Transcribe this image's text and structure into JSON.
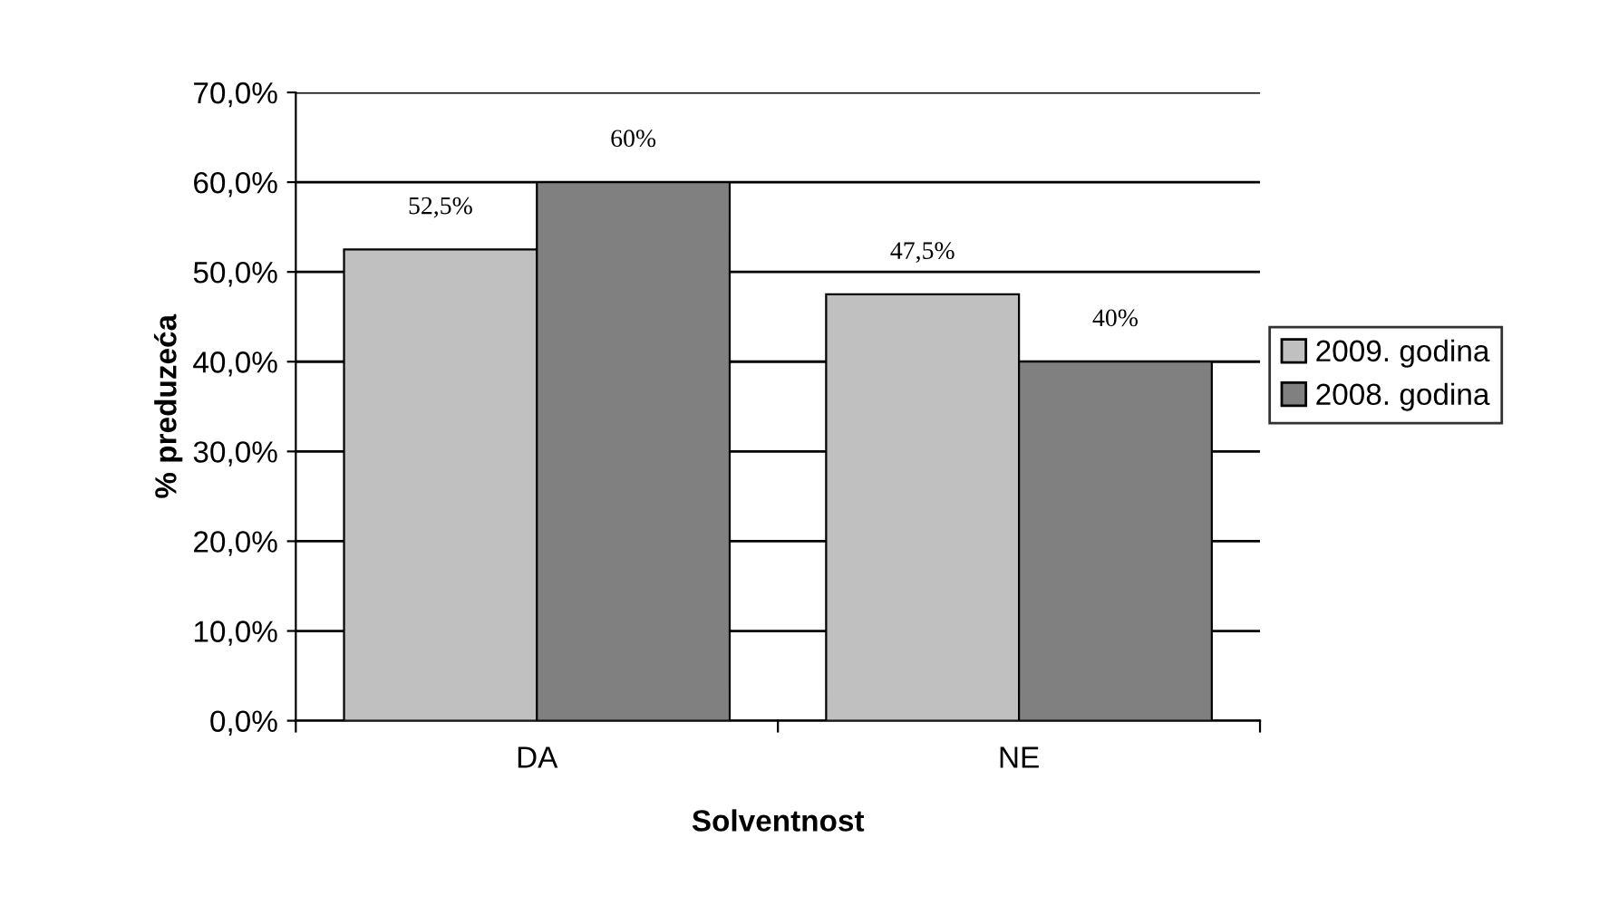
{
  "chart_data": {
    "type": "bar",
    "xlabel": "Solventnost",
    "ylabel": "% preduzeća",
    "categories": [
      "DA",
      "NE"
    ],
    "series": [
      {
        "name": "2009. godina",
        "color": "#c0c0c0",
        "values": [
          52.5,
          47.5
        ],
        "value_labels": [
          "52,5%",
          "47,5%"
        ]
      },
      {
        "name": "2008. godina",
        "color": "#808080",
        "values": [
          60,
          40
        ],
        "value_labels": [
          "60%",
          "40%"
        ]
      }
    ],
    "ylim": [
      0,
      70
    ],
    "yticks": [
      {
        "value": 0,
        "label": "0,0%"
      },
      {
        "value": 10,
        "label": "10,0%"
      },
      {
        "value": 20,
        "label": "20,0%"
      },
      {
        "value": 30,
        "label": "30,0%"
      },
      {
        "value": 40,
        "label": "40,0%"
      },
      {
        "value": 50,
        "label": "50,0%"
      },
      {
        "value": 60,
        "label": "60,0%"
      },
      {
        "value": 70,
        "label": "70,0%"
      }
    ],
    "grid": "y",
    "legend": "right"
  }
}
